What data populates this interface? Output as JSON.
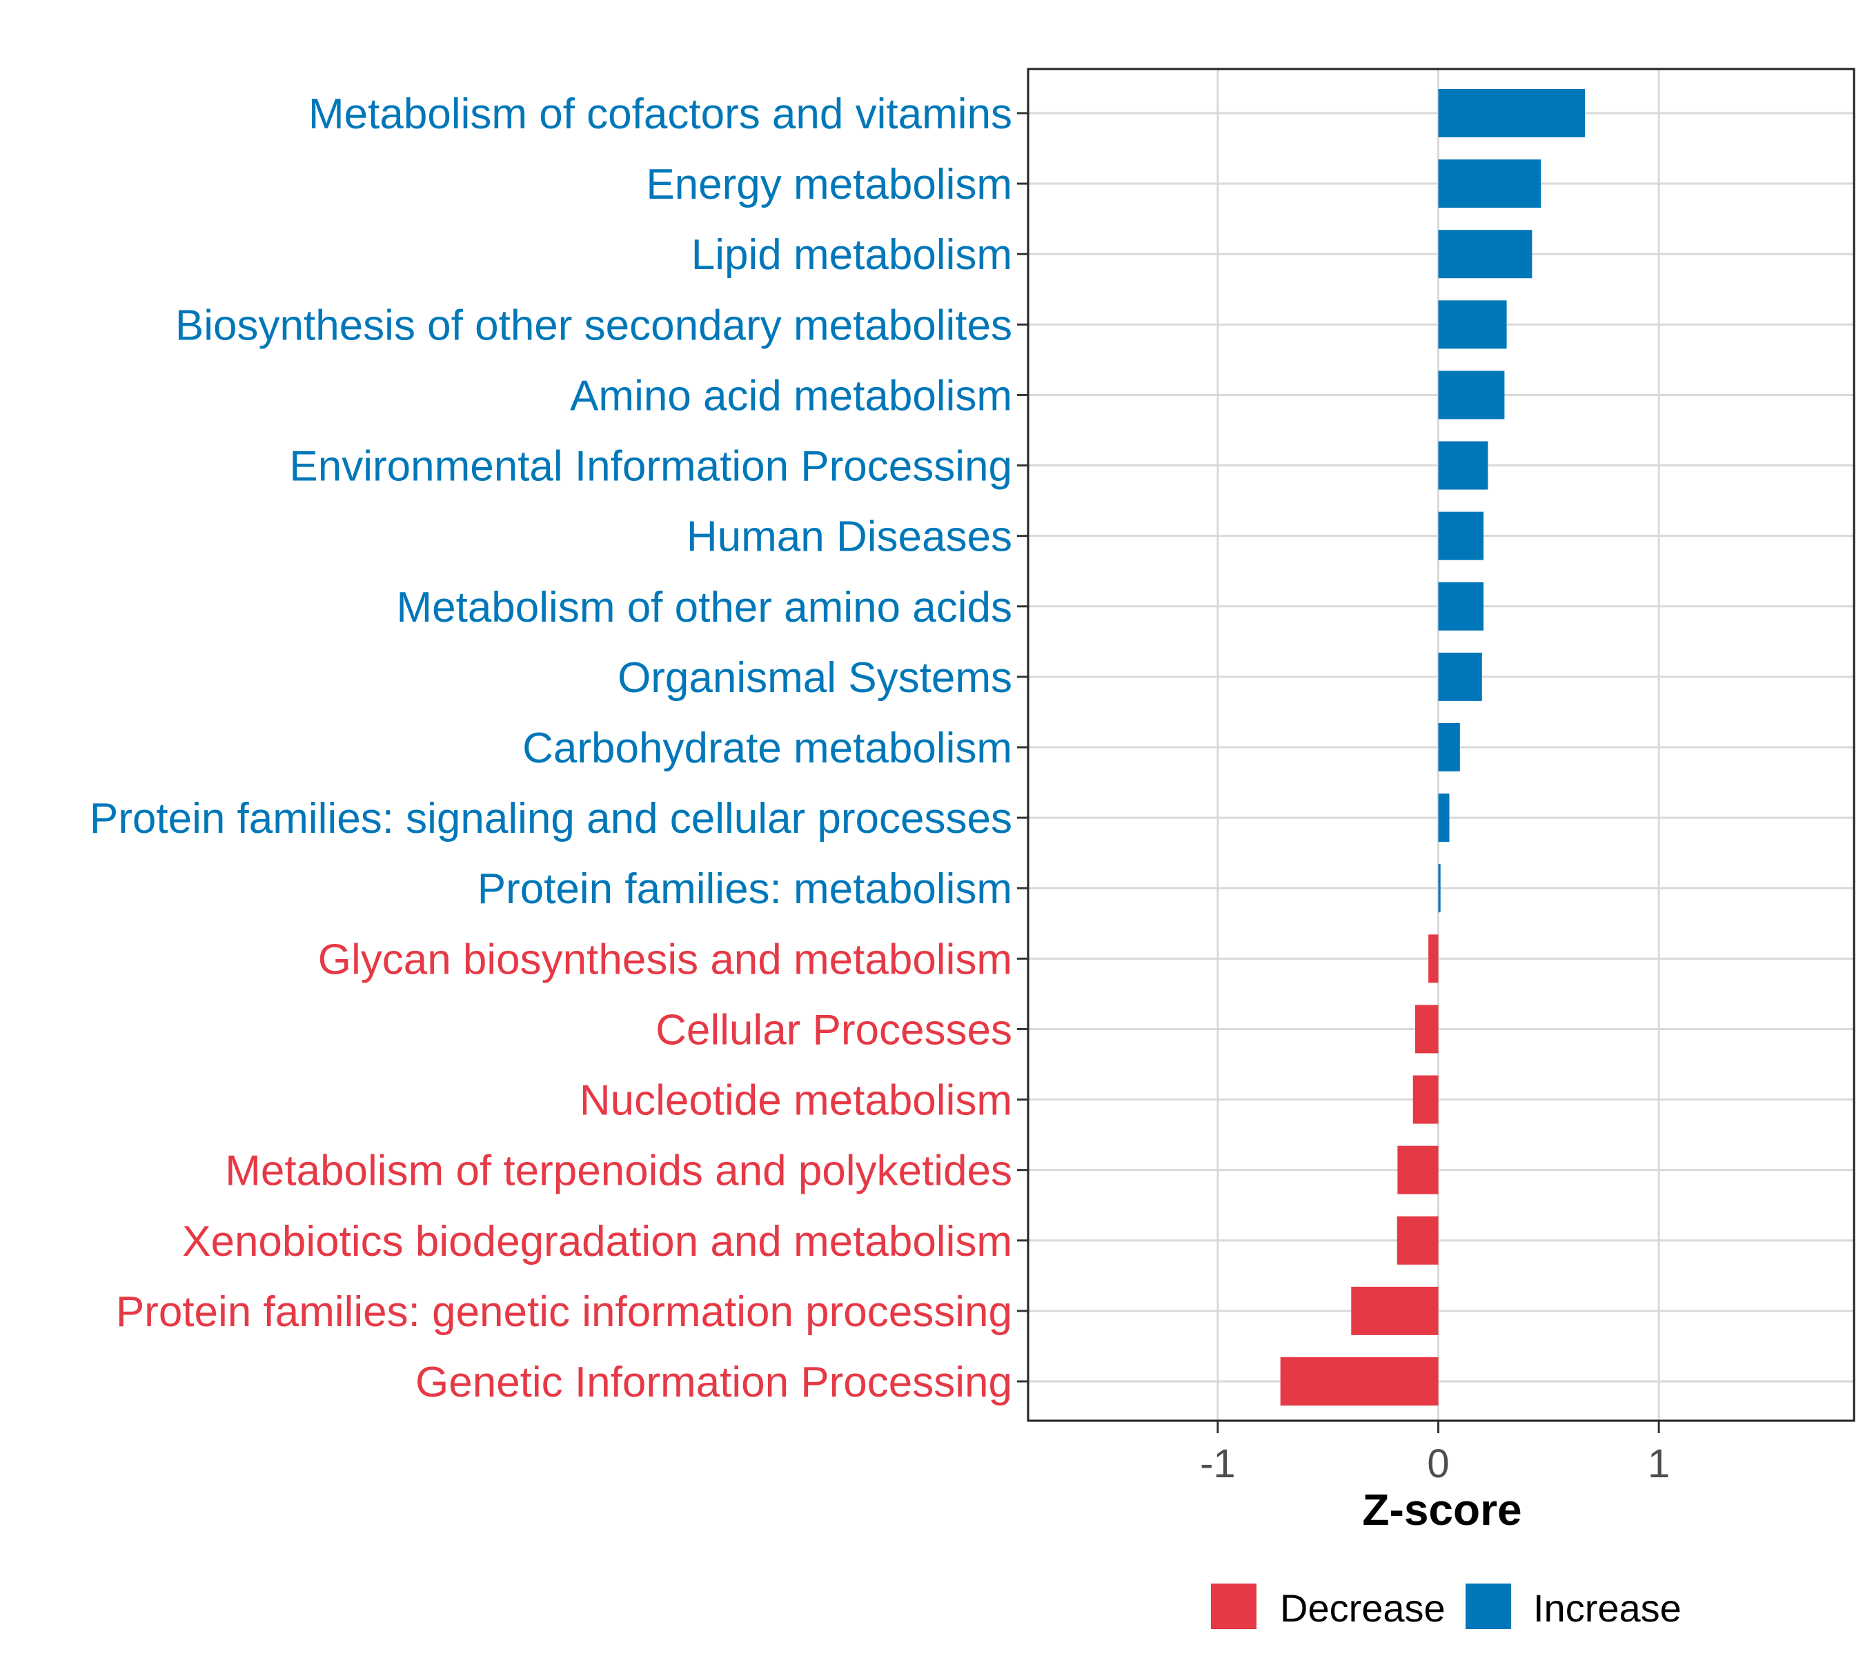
{
  "chart_data": {
    "type": "bar",
    "orientation": "horizontal",
    "title": "",
    "xlabel": "Z-score",
    "ylabel": "",
    "xlim": [
      -1.86,
      1.885
    ],
    "xticks": [
      -1,
      0,
      1
    ],
    "xtick_labels": [
      "-1",
      "0",
      "1"
    ],
    "grid": true,
    "categories": [
      "Metabolism of cofactors and vitamins",
      "Energy metabolism",
      "Lipid metabolism",
      "Biosynthesis of other secondary metabolites",
      "Amino acid metabolism",
      "Environmental Information Processing",
      "Human Diseases",
      "Metabolism of other amino acids",
      "Organismal Systems",
      "Carbohydrate metabolism",
      "Protein families: signaling and cellular processes",
      "Protein families: metabolism",
      "Glycan biosynthesis and metabolism",
      "Cellular Processes",
      "Nucleotide metabolism",
      "Metabolism of terpenoids and polyketides",
      "Xenobiotics biodegradation and metabolism",
      "Protein families: genetic information processing",
      "Genetic Information Processing"
    ],
    "values": [
      0.665,
      0.465,
      0.425,
      0.31,
      0.3,
      0.225,
      0.205,
      0.205,
      0.198,
      0.098,
      0.05,
      0.01,
      -0.045,
      -0.105,
      -0.115,
      -0.185,
      -0.187,
      -0.395,
      -0.716
    ],
    "legend": {
      "placement": "bottom",
      "entries": [
        {
          "label": "Decrease",
          "color": "#E63946"
        },
        {
          "label": "Increase",
          "color": "#0077B8"
        }
      ]
    }
  }
}
